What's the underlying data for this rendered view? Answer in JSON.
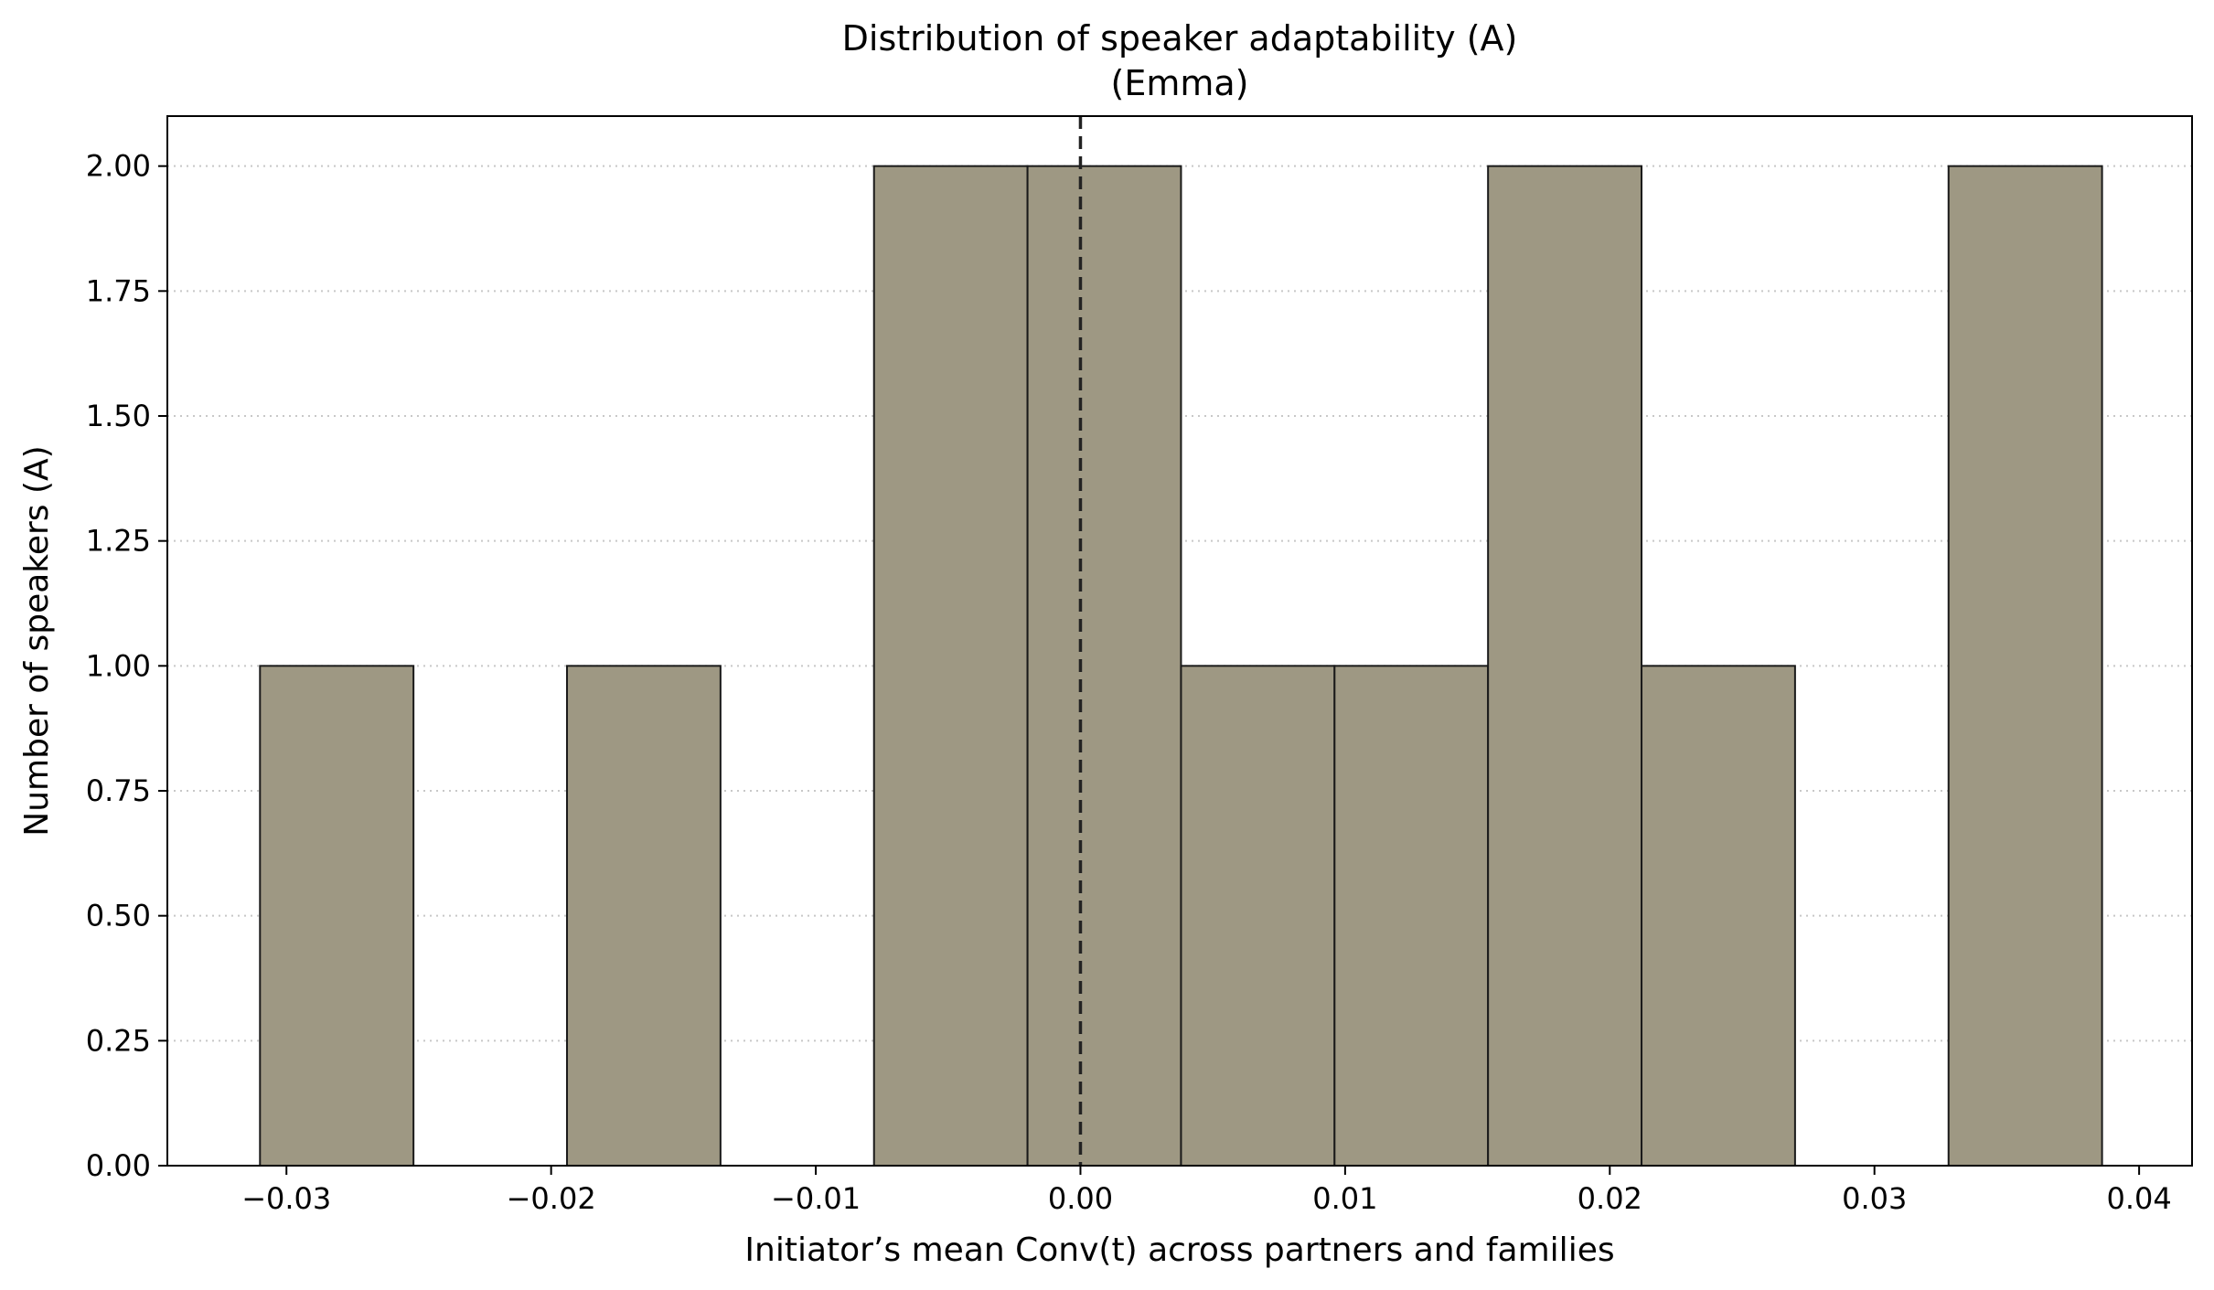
{
  "chart_data": {
    "type": "bar",
    "title": "Distribution of speaker adaptability (A)",
    "subtitle": "(Emma)",
    "xlabel": "Initiator’s mean Conv(t) across partners and families",
    "ylabel": "Number of speakers (A)",
    "xlim": [
      -0.0345,
      0.042
    ],
    "ylim": [
      0,
      2.1
    ],
    "x_ticks": [
      -0.03,
      -0.02,
      -0.01,
      0.0,
      0.01,
      0.02,
      0.03,
      0.04
    ],
    "x_tick_labels": [
      "−0.03",
      "−0.02",
      "−0.01",
      "0.00",
      "0.01",
      "0.02",
      "0.03",
      "0.04"
    ],
    "y_ticks": [
      0,
      0.25,
      0.5,
      0.75,
      1.0,
      1.25,
      1.5,
      1.75,
      2.0
    ],
    "y_tick_labels": [
      "0.00",
      "0.25",
      "0.50",
      "0.75",
      "1.00",
      "1.25",
      "1.50",
      "1.75",
      "2.00"
    ],
    "bin_edges": [
      -0.031,
      -0.0252,
      -0.0194,
      -0.0136,
      -0.0078,
      -0.002,
      0.0038,
      0.0096,
      0.0154,
      0.0212,
      0.027,
      0.0328,
      0.0386
    ],
    "counts": [
      1,
      0,
      1,
      0,
      2,
      2,
      1,
      1,
      2,
      1,
      0,
      2
    ],
    "reference_line_x": 0.0,
    "grid": "horizontal-dotted",
    "colors": {
      "bar_fill": "#9e9883",
      "bar_edge": "#1a1a1a",
      "grid": "#c8c8c8",
      "reference_line": "#222222"
    }
  }
}
